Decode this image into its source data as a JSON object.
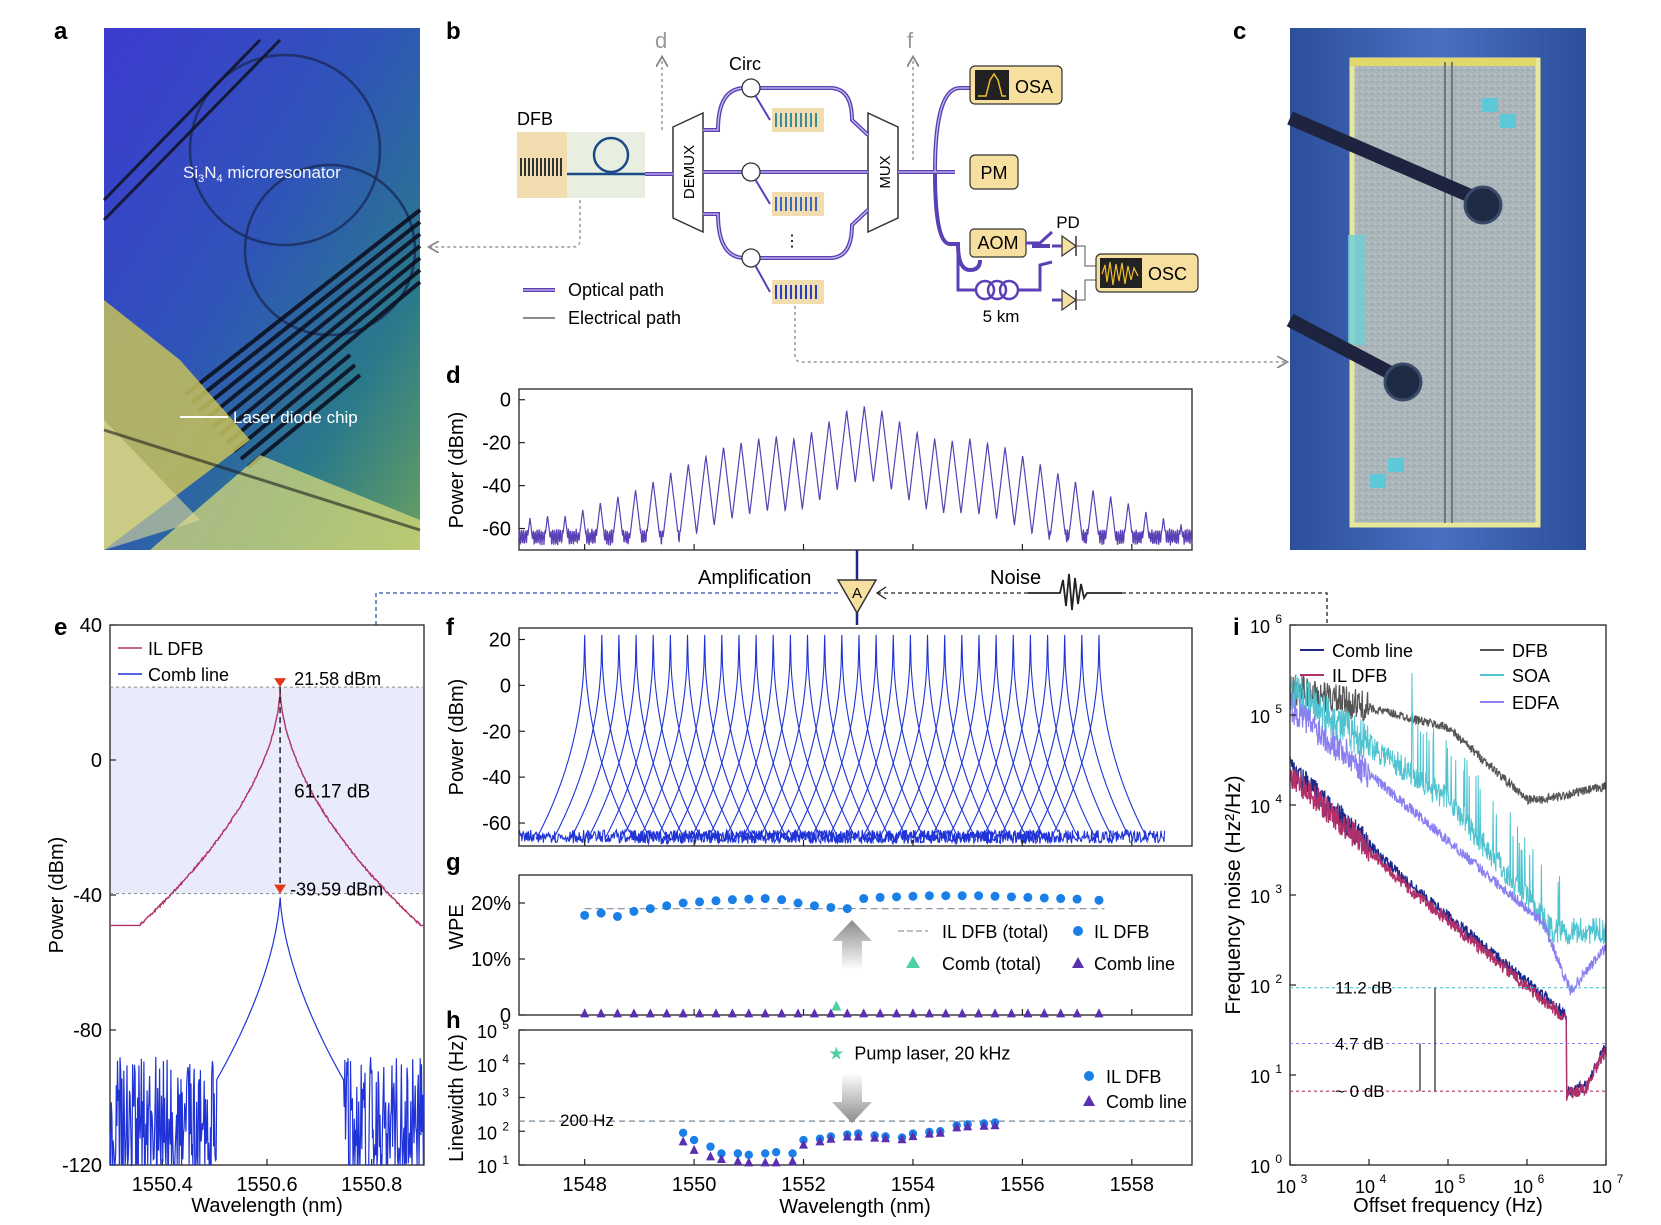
{
  "panels": {
    "a": "a",
    "b": "b",
    "c": "c",
    "d": "d",
    "e": "e",
    "f": "f",
    "g": "g",
    "h": "h",
    "i": "i"
  },
  "panel_a": {
    "label_microresonator": "Si3N4 microresonator",
    "label_microresonator_main": "Si",
    "label_sub1": "3",
    "label_mid": "N",
    "label_sub2": "4",
    "label_tail": " microresonator",
    "label_laser": "Laser diode chip"
  },
  "panel_b": {
    "dfb": "DFB",
    "circ": "Circ",
    "demux": "DEMUX",
    "mux": "MUX",
    "osa": "OSA",
    "pm": "PM",
    "aom": "AOM",
    "pd": "PD",
    "osc": "OSC",
    "fiber": "5 km",
    "arrow_d": "d",
    "arrow_f": "f",
    "ellipsis": "⋮",
    "legend_optical": "Optical path",
    "legend_electrical": "Electrical path"
  },
  "amp_row": {
    "amplification": "Amplification",
    "noise": "Noise",
    "amp_symbol": "A"
  },
  "colors": {
    "purple": "#5b3fb5",
    "blue": "#1f33d6",
    "dfb_crimson": "#b0306a",
    "dot_blue": "#1a7fe6",
    "triangle_purple": "#5a2fb0",
    "teal": "#4fd0a0",
    "soa": "#4fc4d0",
    "edfa": "#8a7ff0",
    "dfb_gray": "#555555"
  },
  "chart_data": [
    {
      "panel": "d",
      "type": "line",
      "ylabel": "Power (dBm)",
      "yticks": [
        "0",
        "-20",
        "-40",
        "-60"
      ],
      "ylim": [
        -70,
        5
      ],
      "xlim": [
        1546.8,
        1559.1
      ],
      "description_x": "shared wavelength axis with panels f, g, h",
      "comb_peaks_dbm": [
        -55,
        -54,
        -54,
        -51,
        -48,
        -45,
        -42,
        -38,
        -34,
        -30,
        -26,
        -22,
        -20,
        -18,
        -17,
        -18,
        -15,
        -10,
        -5,
        -3,
        -5,
        -10,
        -15,
        -18,
        -19,
        -18,
        -20,
        -22,
        -26,
        -30,
        -34,
        -38,
        -42,
        -45,
        -48,
        -52,
        -55,
        -58
      ]
    },
    {
      "panel": "e",
      "type": "line",
      "xlabel": "Wavelength (nm)",
      "ylabel": "Power (dBm)",
      "xlim": [
        1550.3,
        1550.9
      ],
      "ylim": [
        -120,
        40
      ],
      "xticks": [
        "1550.4",
        "1550.6",
        "1550.8"
      ],
      "yticks": [
        "40",
        "0",
        "-40",
        "-80",
        "-120"
      ],
      "series": [
        {
          "name": "IL DFB"
        },
        {
          "name": "Comb line"
        }
      ],
      "annotations": {
        "top": "21.58 dBm",
        "bottom": "-39.59 dBm",
        "delta": "61.17 dB"
      },
      "il_dfb_peak_dbm": 21.58,
      "comb_peak_dbm": -39.59,
      "center_nm": 1550.625
    },
    {
      "panel": "f",
      "type": "line",
      "ylabel": "Power (dBm)",
      "yticks": [
        "20",
        "0",
        "-20",
        "-40",
        "-60"
      ],
      "ylim": [
        -70,
        25
      ],
      "peak_dbm": 22,
      "line_count": 31
    },
    {
      "panel": "g",
      "type": "scatter",
      "ylabel": "WPE",
      "yticks": [
        "20%",
        "10%",
        "0"
      ],
      "ylim": [
        0,
        25
      ],
      "legend": [
        "IL DFB (total)",
        "IL DFB",
        "Comb (total)",
        "Comb line"
      ],
      "il_dfb_total": 19,
      "comb_total": 1.5,
      "il_dfb_x": [
        1548.0,
        1548.3,
        1548.6,
        1548.9,
        1549.2,
        1549.5,
        1549.8,
        1550.1,
        1550.4,
        1550.7,
        1551.0,
        1551.3,
        1551.6,
        1551.9,
        1552.2,
        1552.5,
        1552.8,
        1553.1,
        1553.4,
        1553.7,
        1554.0,
        1554.3,
        1554.6,
        1554.9,
        1555.2,
        1555.5,
        1555.8,
        1556.1,
        1556.4,
        1556.7,
        1557.0,
        1557.4
      ],
      "il_dfb_y": [
        17.8,
        18.2,
        17.6,
        18.5,
        19.0,
        19.5,
        20.0,
        20.2,
        20.4,
        20.6,
        20.7,
        20.8,
        20.6,
        20.0,
        19.5,
        19.2,
        19.0,
        20.8,
        21.0,
        21.1,
        21.2,
        21.3,
        21.3,
        21.3,
        21.3,
        21.2,
        21.1,
        21.0,
        20.9,
        20.8,
        20.7,
        20.5
      ],
      "comb_y": 0.3
    },
    {
      "panel": "h",
      "type": "scatter",
      "xlabel": "Wavelength (nm)",
      "ylabel": "Linewidth (Hz)",
      "xticks": [
        "1548",
        "1550",
        "1552",
        "1554",
        "1556",
        "1558"
      ],
      "xlim": [
        1546.8,
        1559.1
      ],
      "yticks": [
        "10",
        "10",
        "10",
        "10",
        "10"
      ],
      "ytick_exps": [
        "5",
        "4",
        "3",
        "2",
        "1"
      ],
      "ylim_log10": [
        1,
        5
      ],
      "ref_line": "200 Hz",
      "ref_value": 200,
      "pump_label": "Pump laser, 20 kHz",
      "pump_x": 1552.6,
      "pump_value": 20000,
      "legend": [
        "IL DFB",
        "Comb line"
      ],
      "il_dfb_x": [
        1549.8,
        1550.0,
        1550.3,
        1550.5,
        1550.8,
        1551.0,
        1551.3,
        1551.5,
        1551.8,
        1552.0,
        1552.3,
        1552.5,
        1552.8,
        1553.0,
        1553.3,
        1553.5,
        1553.8,
        1554.0,
        1554.3,
        1554.5,
        1554.8,
        1555.0,
        1555.3,
        1555.5
      ],
      "il_dfb_y": [
        90,
        55,
        35,
        22,
        22,
        20,
        22,
        24,
        22,
        55,
        60,
        70,
        80,
        85,
        75,
        70,
        65,
        85,
        95,
        100,
        150,
        160,
        170,
        180
      ],
      "comb_x": [
        1549.8,
        1550.0,
        1550.3,
        1550.5,
        1550.8,
        1551.0,
        1551.3,
        1551.5,
        1551.8,
        1552.0,
        1552.3,
        1552.5,
        1552.8,
        1553.0,
        1553.3,
        1553.5,
        1553.8,
        1554.0,
        1554.3,
        1554.5,
        1554.8,
        1555.0,
        1555.3,
        1555.5
      ],
      "comb_y": [
        50,
        28,
        18,
        15,
        13,
        12,
        12,
        12,
        13,
        40,
        50,
        60,
        70,
        70,
        65,
        62,
        58,
        72,
        85,
        90,
        130,
        140,
        145,
        150
      ]
    },
    {
      "panel": "i",
      "type": "line",
      "xlabel": "Offset frequency (Hz)",
      "ylabel": "Frequency noise (Hz²/Hz)",
      "xlim_log10": [
        3,
        7
      ],
      "ylim_log10": [
        0,
        6
      ],
      "xtick_exps": [
        "3",
        "4",
        "5",
        "6",
        "7"
      ],
      "ytick_exps": [
        "6",
        "5",
        "4",
        "3",
        "2",
        "1",
        "0"
      ],
      "tick_base": "10",
      "series": [
        {
          "name": "Comb line"
        },
        {
          "name": "IL DFB"
        },
        {
          "name": "DFB"
        },
        {
          "name": "SOA"
        },
        {
          "name": "EDFA"
        }
      ],
      "annotations": [
        "11.2 dB",
        "4.7 dB",
        "~ 0 dB"
      ]
    }
  ]
}
